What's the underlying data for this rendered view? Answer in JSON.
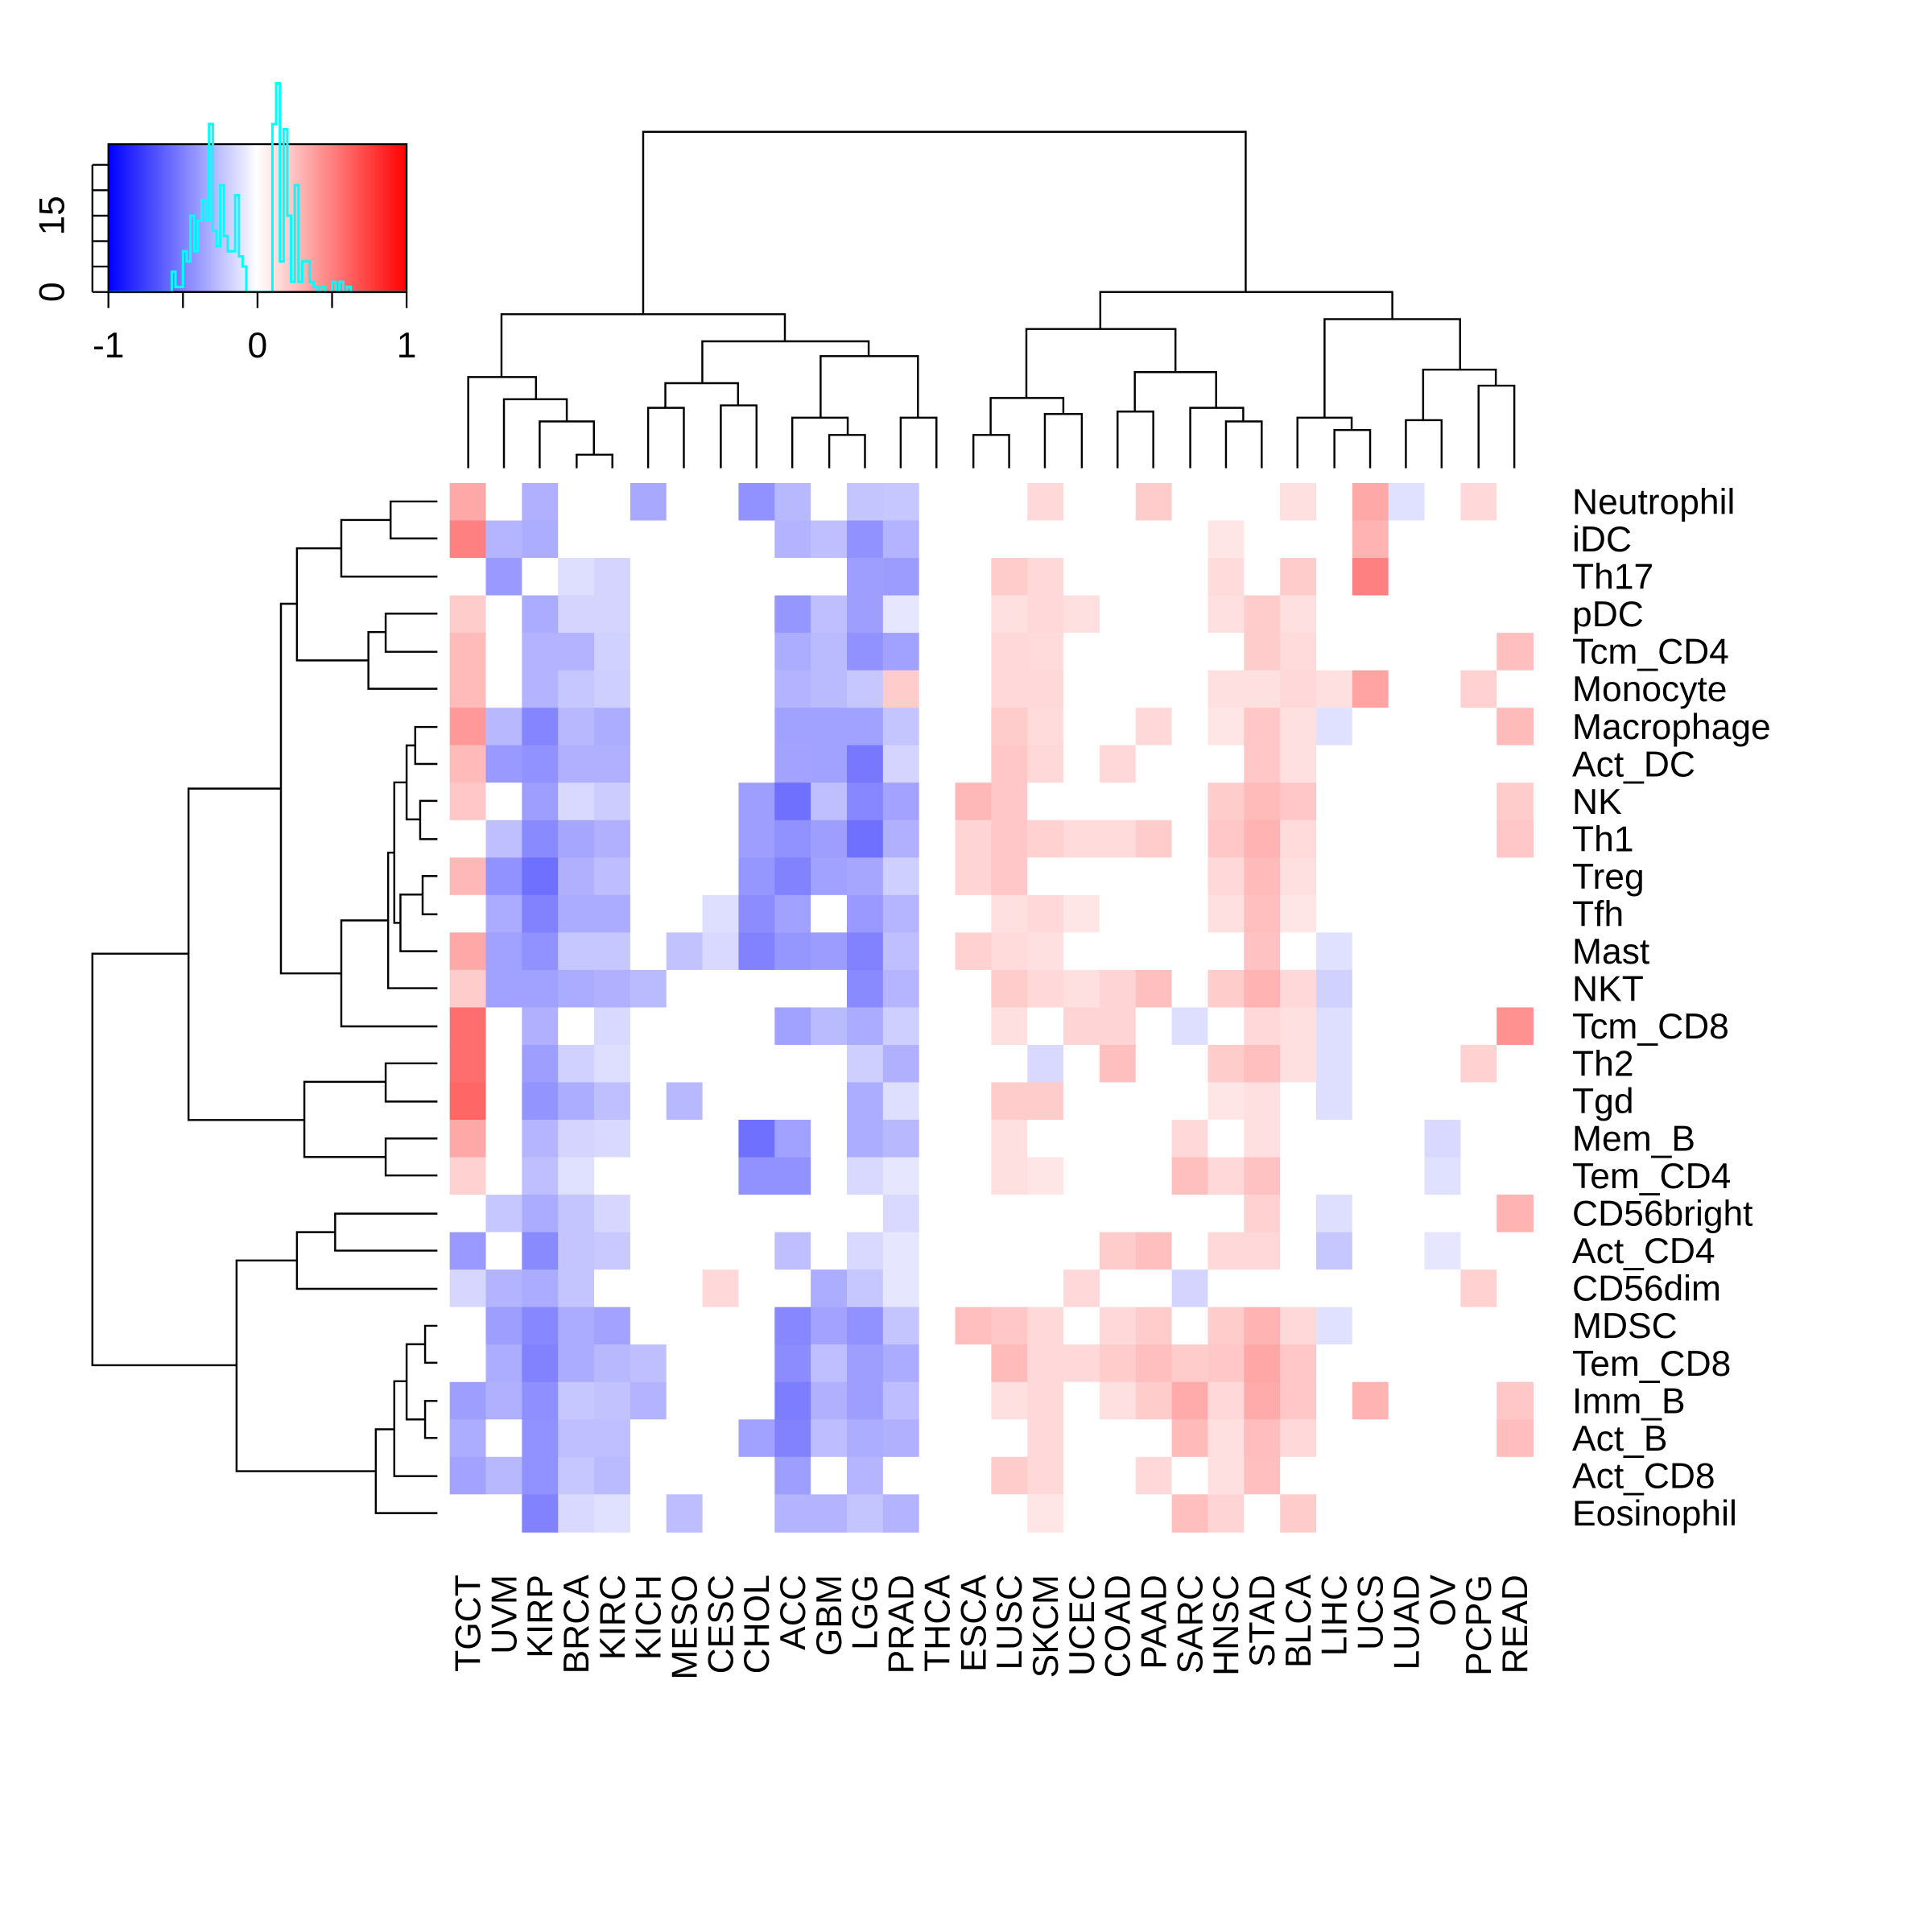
{
  "chart_data": {
    "type": "heatmap",
    "title": "",
    "xlabel": "",
    "ylabel": "",
    "value_range": [
      -1,
      1
    ],
    "colors": {
      "low": "#0000ff",
      "mid": "#ffffff",
      "high": "#ff0000",
      "histogram": "#00ffff"
    },
    "columns": [
      "TGCT",
      "UVM",
      "KIRP",
      "BRCA",
      "KIRC",
      "KICH",
      "MESO",
      "CESC",
      "CHOL",
      "ACC",
      "GBM",
      "LGG",
      "PRAD",
      "THCA",
      "ESCA",
      "LUSC",
      "SKCM",
      "UCEC",
      "COAD",
      "PAAD",
      "SARC",
      "HNSC",
      "STAD",
      "BLCA",
      "LIHC",
      "UCS",
      "LUAD",
      "OV",
      "PCPG",
      "READ"
    ],
    "rows": [
      "Neutrophil",
      "iDC",
      "Th17",
      "pDC",
      "Tcm_CD4",
      "Monocyte",
      "Macrophage",
      "Act_DC",
      "NK",
      "Th1",
      "Treg",
      "Tfh",
      "Mast",
      "NKT",
      "Tcm_CD8",
      "Th2",
      "Tgd",
      "Mem_B",
      "Tem_CD4",
      "CD56bright",
      "Act_CD4",
      "CD56dim",
      "MDSC",
      "Tem_CD8",
      "Imm_B",
      "Act_B",
      "Act_CD8",
      "Eosinophil"
    ],
    "values": [
      [
        0.34,
        0,
        -0.31,
        0,
        0,
        -0.34,
        0,
        0,
        -0.43,
        -0.28,
        0,
        -0.23,
        -0.22,
        0,
        0,
        0,
        0.15,
        0,
        0,
        0.2,
        0,
        0,
        0,
        0.12,
        0,
        0.34,
        -0.12,
        0,
        0.15,
        0
      ],
      [
        0.5,
        -0.29,
        -0.32,
        0,
        0,
        0,
        0,
        0,
        0,
        -0.3,
        -0.25,
        -0.43,
        -0.3,
        0,
        0,
        0,
        0,
        0,
        0,
        0,
        0,
        0.1,
        0,
        0,
        0,
        0.3,
        0,
        0,
        0,
        0
      ],
      [
        0,
        -0.4,
        0,
        -0.13,
        -0.17,
        0,
        0,
        0,
        0,
        0,
        0,
        -0.38,
        -0.39,
        0,
        0,
        0.2,
        0.15,
        0,
        0,
        0,
        0,
        0.14,
        0,
        0.2,
        0,
        0.5,
        0,
        0,
        0,
        0
      ],
      [
        0.2,
        0,
        -0.33,
        -0.17,
        -0.17,
        0,
        0,
        0,
        0,
        -0.41,
        -0.25,
        -0.38,
        -0.1,
        0,
        0,
        0.12,
        0.15,
        0.12,
        0,
        0,
        0,
        0.12,
        0.2,
        0.12,
        0,
        0,
        0,
        0,
        0,
        0
      ],
      [
        0.27,
        0,
        -0.3,
        -0.3,
        -0.18,
        0,
        0,
        0,
        0,
        -0.32,
        -0.27,
        -0.43,
        -0.37,
        0,
        0,
        0.15,
        0.14,
        0,
        0,
        0,
        0,
        0,
        0.2,
        0.14,
        0,
        0,
        0,
        0,
        0,
        0.25
      ],
      [
        0.27,
        0,
        -0.3,
        -0.22,
        -0.19,
        0,
        0,
        0,
        0,
        -0.3,
        -0.27,
        -0.22,
        0.2,
        0,
        0,
        0.15,
        0.15,
        0,
        0,
        0,
        0,
        0.12,
        0.12,
        0.15,
        0.12,
        0.36,
        0,
        0,
        0.18,
        0
      ],
      [
        0.4,
        -0.28,
        -0.48,
        -0.28,
        -0.32,
        0,
        0,
        0,
        0,
        -0.37,
        -0.37,
        -0.37,
        -0.23,
        0,
        0,
        0.2,
        0.14,
        0,
        0,
        0.15,
        0,
        0.1,
        0.22,
        0.12,
        -0.12,
        0,
        0,
        0,
        0,
        0.27
      ],
      [
        0.27,
        -0.4,
        -0.43,
        -0.31,
        -0.31,
        0,
        0,
        0,
        0,
        -0.36,
        -0.37,
        -0.53,
        -0.17,
        0,
        0,
        0.22,
        0.15,
        0,
        0.15,
        0,
        0,
        0,
        0.22,
        0.12,
        0,
        0,
        0,
        0,
        0,
        0
      ],
      [
        0.22,
        0,
        -0.38,
        -0.15,
        -0.2,
        0,
        0,
        0,
        -0.38,
        -0.56,
        -0.25,
        -0.47,
        -0.36,
        0,
        0.28,
        0.22,
        0,
        0,
        0,
        0,
        0,
        0.2,
        0.27,
        0.22,
        0,
        0,
        0,
        0,
        0,
        0.2
      ],
      [
        0,
        -0.25,
        -0.46,
        -0.35,
        -0.31,
        0,
        0,
        0,
        -0.38,
        -0.43,
        -0.38,
        -0.56,
        -0.31,
        0,
        0.17,
        0.22,
        0.18,
        0.14,
        0.14,
        0.2,
        0,
        0.22,
        0.3,
        0.14,
        0,
        0,
        0,
        0,
        0,
        0.22
      ],
      [
        0.28,
        -0.43,
        -0.56,
        -0.31,
        -0.26,
        0,
        0,
        0,
        -0.41,
        -0.49,
        -0.37,
        -0.35,
        -0.19,
        0,
        0.17,
        0.22,
        0,
        0,
        0,
        0,
        0,
        0.15,
        0.27,
        0.12,
        0,
        0,
        0,
        0,
        0,
        0
      ],
      [
        0,
        -0.33,
        -0.49,
        -0.33,
        -0.33,
        0,
        0,
        -0.13,
        -0.45,
        -0.37,
        0,
        -0.4,
        -0.29,
        0,
        0,
        0.12,
        0.15,
        0.1,
        0,
        0,
        0,
        0.12,
        0.25,
        0.1,
        0,
        0,
        0,
        0,
        0,
        0
      ],
      [
        0.34,
        -0.37,
        -0.43,
        -0.22,
        -0.22,
        0,
        -0.24,
        -0.15,
        -0.49,
        -0.41,
        -0.39,
        -0.49,
        -0.25,
        0,
        0.18,
        0.14,
        0.12,
        0,
        0,
        0,
        0,
        0,
        0.24,
        0,
        -0.12,
        0,
        0,
        0,
        0,
        0
      ],
      [
        0.2,
        -0.37,
        -0.37,
        -0.33,
        -0.31,
        -0.27,
        0,
        0,
        0,
        0,
        0,
        -0.46,
        -0.29,
        0,
        0,
        0.2,
        0.15,
        0.12,
        0.17,
        0.25,
        0,
        0.2,
        0.3,
        0.15,
        -0.18,
        0,
        0,
        0,
        0,
        0
      ],
      [
        0.57,
        0,
        -0.31,
        0,
        -0.15,
        0,
        0,
        0,
        0,
        -0.37,
        -0.27,
        -0.33,
        -0.19,
        0,
        0,
        0.12,
        0,
        0.17,
        0.17,
        0,
        -0.13,
        0,
        0.15,
        0.12,
        -0.13,
        0,
        0,
        0,
        0,
        0.43
      ],
      [
        0.57,
        0,
        -0.38,
        -0.18,
        -0.13,
        0,
        0,
        0,
        0,
        0,
        0,
        -0.19,
        -0.31,
        0,
        0,
        0,
        -0.15,
        0,
        0.25,
        0,
        0,
        0.2,
        0.25,
        0.12,
        -0.13,
        0,
        0,
        0,
        0.18,
        0
      ],
      [
        0.6,
        0,
        -0.42,
        -0.32,
        -0.25,
        0,
        -0.28,
        0,
        0,
        0,
        0,
        -0.32,
        -0.13,
        0,
        0,
        0.2,
        0.2,
        0,
        0,
        0,
        0,
        0.1,
        0.12,
        0,
        -0.13,
        0,
        0,
        0,
        0,
        0
      ],
      [
        0.34,
        0,
        -0.29,
        -0.17,
        -0.15,
        0,
        0,
        0,
        -0.56,
        -0.37,
        0,
        -0.32,
        -0.28,
        0,
        0,
        0.12,
        0,
        0,
        0,
        0,
        0.15,
        0,
        0.12,
        0,
        0,
        0,
        0,
        -0.15,
        0,
        0
      ],
      [
        0.18,
        0,
        -0.25,
        -0.12,
        0,
        0,
        0,
        0,
        -0.43,
        -0.43,
        0,
        -0.15,
        -0.1,
        0,
        0,
        0.12,
        0.1,
        0,
        0,
        0,
        0.25,
        0.15,
        0.24,
        0,
        0,
        0,
        0,
        -0.12,
        0,
        0
      ],
      [
        0,
        -0.22,
        -0.33,
        -0.23,
        -0.16,
        0,
        0,
        0,
        0,
        0,
        0,
        0,
        -0.15,
        0,
        0,
        0,
        0,
        0,
        0,
        0,
        0,
        0,
        0.18,
        0,
        -0.13,
        0,
        0,
        0,
        0,
        0.3
      ],
      [
        -0.4,
        0,
        -0.46,
        -0.23,
        -0.21,
        0,
        0,
        0,
        0,
        -0.25,
        0,
        -0.15,
        -0.1,
        0,
        0,
        0,
        0,
        0,
        0.2,
        0.25,
        0,
        0.15,
        0.15,
        0,
        -0.22,
        0,
        0,
        -0.1,
        0,
        0
      ],
      [
        -0.16,
        -0.3,
        -0.33,
        -0.23,
        0,
        0,
        0,
        0.15,
        0,
        0,
        -0.32,
        -0.22,
        -0.1,
        0,
        0,
        0,
        0,
        0.15,
        0,
        0,
        -0.17,
        0,
        0,
        0,
        0,
        0,
        0,
        0,
        0.18,
        0
      ],
      [
        0,
        -0.38,
        -0.47,
        -0.33,
        -0.36,
        0,
        0,
        0,
        0,
        -0.47,
        -0.36,
        -0.43,
        -0.23,
        0,
        0.25,
        0.22,
        0.15,
        0,
        0.15,
        0.2,
        0,
        0.2,
        0.3,
        0.15,
        -0.12,
        0,
        0,
        0,
        0,
        0
      ],
      [
        0,
        -0.32,
        -0.49,
        -0.33,
        -0.28,
        -0.25,
        0,
        0,
        0,
        -0.45,
        -0.25,
        -0.38,
        -0.33,
        0,
        0,
        0.27,
        0.15,
        0.15,
        0.2,
        0.25,
        0.2,
        0.22,
        0.35,
        0.22,
        0,
        0,
        0,
        0,
        0,
        0
      ],
      [
        -0.38,
        -0.31,
        -0.44,
        -0.22,
        -0.24,
        -0.3,
        0,
        0,
        0,
        -0.51,
        -0.31,
        -0.38,
        -0.26,
        0,
        0,
        0.12,
        0.15,
        0,
        0.12,
        0.2,
        0.33,
        0.15,
        0.33,
        0.22,
        0,
        0.3,
        0,
        0,
        0,
        0.22
      ],
      [
        -0.32,
        0,
        -0.43,
        -0.25,
        -0.25,
        0,
        0,
        0,
        -0.37,
        -0.49,
        -0.26,
        -0.32,
        -0.31,
        0,
        0,
        0,
        0.15,
        0,
        0,
        0,
        0.27,
        0.12,
        0.26,
        0.15,
        0,
        0,
        0,
        0,
        0,
        0.26
      ],
      [
        -0.36,
        -0.28,
        -0.43,
        -0.22,
        -0.27,
        0,
        0,
        0,
        0,
        -0.38,
        0,
        -0.29,
        0,
        0,
        0,
        0.2,
        0.15,
        0,
        0,
        0.15,
        0,
        0.12,
        0.25,
        0,
        0,
        0,
        0,
        0,
        0,
        0
      ],
      [
        0,
        0,
        -0.49,
        -0.15,
        -0.12,
        0,
        -0.26,
        0,
        0,
        -0.3,
        -0.3,
        -0.23,
        -0.3,
        0,
        0,
        0,
        0.1,
        0,
        0,
        0,
        0.25,
        0.17,
        0,
        0.2,
        0,
        0,
        0,
        0,
        0,
        0
      ]
    ],
    "color_key": {
      "x_tick_values": [
        -1,
        -0.5,
        0,
        0.5,
        1
      ],
      "x_tick_labels": [
        "-1",
        "0",
        "1"
      ],
      "y_tick_labels": [
        "0",
        "15"
      ],
      "y_range": [
        0,
        25
      ]
    }
  }
}
